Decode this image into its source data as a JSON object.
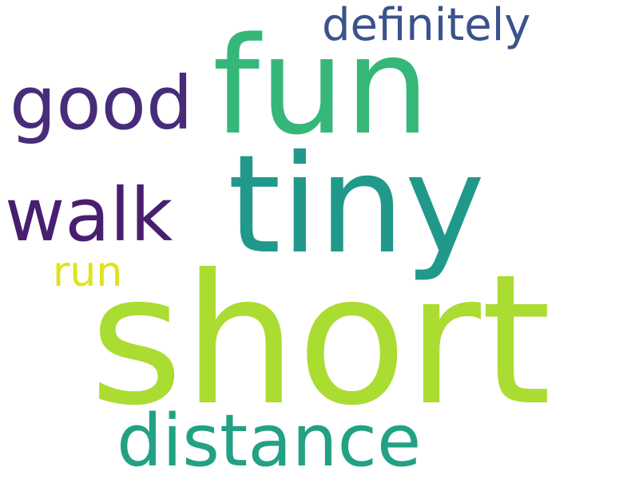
{
  "words": {
    "definitely": {
      "text": "definitely",
      "color": "#3B528B"
    },
    "fun": {
      "text": "fun",
      "color": "#35B779"
    },
    "good": {
      "text": "good",
      "color": "#472C7A"
    },
    "tiny": {
      "text": "tiny",
      "color": "#21998A"
    },
    "walk": {
      "text": "walk",
      "color": "#481F70"
    },
    "run": {
      "text": "run",
      "color": "#DFE318"
    },
    "short": {
      "text": "short",
      "color": "#ABDC32"
    },
    "distance": {
      "text": "distance",
      "color": "#22A184"
    }
  }
}
